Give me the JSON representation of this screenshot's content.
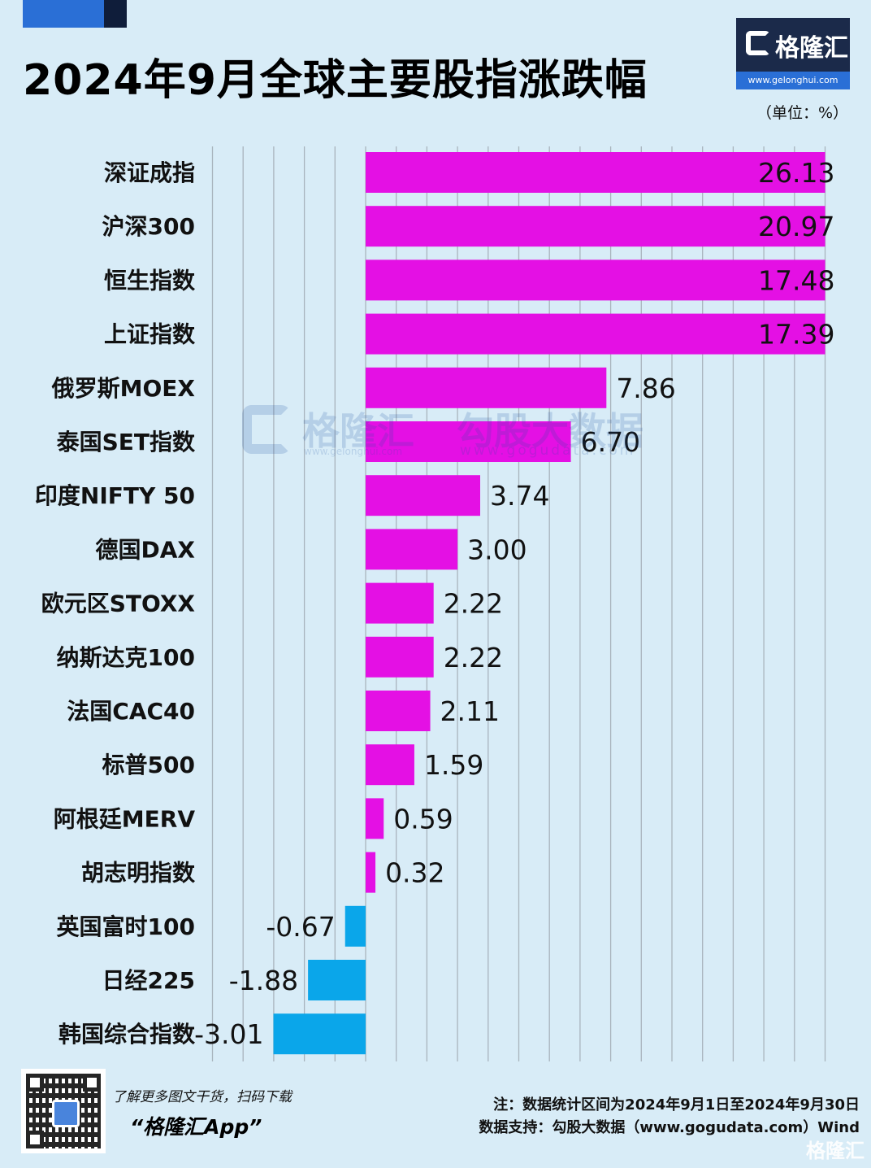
{
  "header": {
    "title": "2024年9月全球主要股指涨跌幅",
    "unit": "（单位：%）"
  },
  "logo": {
    "name": "格隆汇",
    "url": "www.gelonghui.com"
  },
  "watermark": {
    "brand": "格隆汇",
    "brand_url": "www.gelonghui.com",
    "data_brand": "勾股大数据",
    "data_url": "www.gogudata.com"
  },
  "footer": {
    "promo_line": "了解更多图文干货，扫码下载",
    "promo_app": "“格隆汇App”",
    "note": "注：数据统计区间为2024年9月1日至2024年9月30日",
    "source": "数据支持：勾股大数据（www.gogudata.com）Wind",
    "corner_brand": "格隆汇"
  },
  "colors": {
    "positive": "#e410e4",
    "negative": "#0aa6ea",
    "grid": "#a9b4bd",
    "background": "#d8ecf7"
  },
  "chart_data": {
    "type": "bar",
    "orientation": "horizontal",
    "title": "2024年9月全球主要股指涨跌幅",
    "unit": "%",
    "categories": [
      "深证成指",
      "沪深300",
      "恒生指数",
      "上证指数",
      "俄罗斯MOEX",
      "泰国SET指数",
      "印度NIFTY 50",
      "德国DAX",
      "欧元区STOXX",
      "纳斯达克100",
      "法国CAC40",
      "标普500",
      "阿根廷MERV",
      "胡志明指数",
      "英国富时100",
      "日经225",
      "韩国综合指数"
    ],
    "values": [
      26.13,
      20.97,
      17.48,
      17.39,
      7.86,
      6.7,
      3.74,
      3.0,
      2.22,
      2.22,
      2.11,
      1.59,
      0.59,
      0.32,
      -0.67,
      -1.88,
      -3.01
    ],
    "value_labels": [
      "26.13",
      "20.97",
      "17.48",
      "17.39",
      "7.86",
      "6.70",
      "3.74",
      "3.00",
      "2.22",
      "2.22",
      "2.11",
      "1.59",
      "0.59",
      "0.32",
      "-0.67",
      "-1.88",
      "-3.01"
    ],
    "axis_clip_max": 15,
    "xlim": [
      -5,
      15
    ],
    "grid": true,
    "legend": "none"
  }
}
